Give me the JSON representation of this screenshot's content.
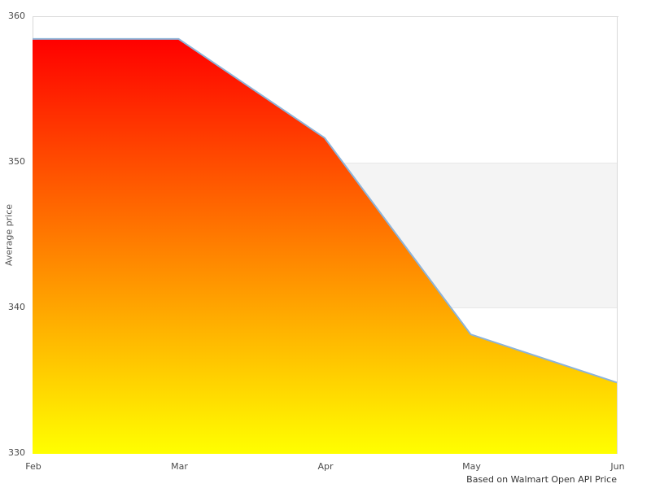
{
  "chart_data": {
    "type": "area",
    "title": "",
    "categories": [
      "Feb",
      "Mar",
      "Apr",
      "May",
      "Jun"
    ],
    "series": [
      {
        "name": "Average price",
        "values": [
          358.5,
          358.5,
          351.7,
          338.2,
          334.9
        ]
      }
    ],
    "xlabel": "",
    "ylabel": "Average price",
    "ylim": [
      330,
      360
    ],
    "yticks": [
      330,
      340,
      350,
      360
    ],
    "plot_band": {
      "from": 340,
      "to": 350
    },
    "caption": "Based on Walmart Open API Price",
    "legend": "none",
    "grid": "plot border top/left/right only, horizontal band 340-350",
    "colors": {
      "area_gradient_top": "#ff0000",
      "area_gradient_bottom": "#ffff00",
      "line": "#8cb3d9",
      "band_fill": "#f4f4f4",
      "band_edge": "#e8e8e8",
      "plot_border": "#d9d9d9",
      "tick_text": "#4a4a4a",
      "caption_text": "#333333"
    }
  }
}
